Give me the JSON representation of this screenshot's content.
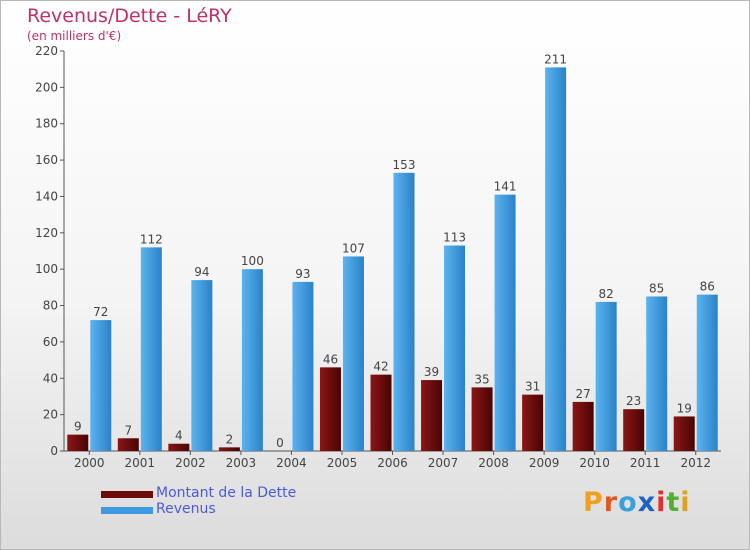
{
  "chart_data": {
    "type": "bar",
    "title": "Revenus/Dette - LéRY",
    "subtitle": "(en milliers d'€)",
    "categories": [
      "2000",
      "2001",
      "2002",
      "2003",
      "2004",
      "2005",
      "2006",
      "2007",
      "2008",
      "2009",
      "2010",
      "2011",
      "2012"
    ],
    "series": [
      {
        "name": "Montant de la Dette",
        "color": "#6e0b0b",
        "values": [
          9,
          7,
          4,
          2,
          0,
          46,
          42,
          39,
          35,
          31,
          27,
          23,
          19
        ]
      },
      {
        "name": "Revenus",
        "color": "#3d9ae0",
        "values": [
          72,
          112,
          94,
          100,
          93,
          107,
          153,
          113,
          141,
          211,
          82,
          85,
          86
        ]
      }
    ],
    "ylim": [
      0,
      220
    ],
    "yticks": [
      0,
      20,
      40,
      60,
      80,
      100,
      120,
      140,
      160,
      180,
      200,
      220
    ],
    "grid": false,
    "legend": "bottom-left"
  },
  "logo": {
    "letters": [
      {
        "char": "P",
        "color": "#f0a020"
      },
      {
        "char": "r",
        "color": "#e05a20"
      },
      {
        "char": "o",
        "color": "#3aa0d8"
      },
      {
        "char": "x",
        "color": "#2060c0"
      },
      {
        "char": "i",
        "color": "#e03030"
      },
      {
        "char": "t",
        "color": "#50b030"
      },
      {
        "char": "i",
        "color": "#e0a020"
      }
    ],
    "icon": "proxiti-logo"
  }
}
